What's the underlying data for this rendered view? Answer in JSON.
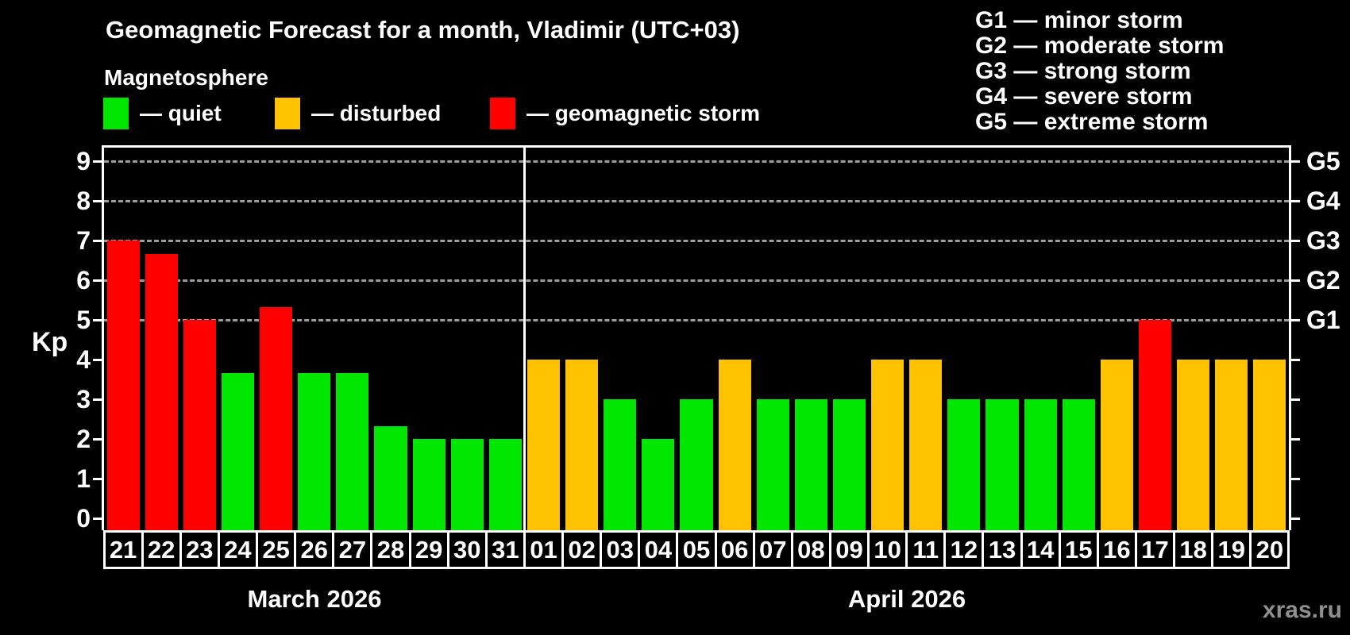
{
  "header": {
    "title": "Geomagnetic Forecast for a month, Vladimir (UTC+03)",
    "subtitle": "Magnetosphere"
  },
  "legend": {
    "items": [
      {
        "key": "quiet",
        "label": "— quiet",
        "color": "#00e600"
      },
      {
        "key": "disturbed",
        "label": "— disturbed",
        "color": "#ffc200"
      },
      {
        "key": "storm",
        "label": "— geomagnetic storm",
        "color": "#ff0000"
      }
    ]
  },
  "g_legend": {
    "lines": [
      "G1 — minor storm",
      "G2 — moderate storm",
      "G3 — strong storm",
      "G4 — severe storm",
      "G5 — extreme storm"
    ]
  },
  "watermark": "xras.ru",
  "chart_data": {
    "type": "bar",
    "title": "Geomagnetic Forecast for a month, Vladimir (UTC+03)",
    "ylabel": "Kp",
    "ylim": [
      0,
      9.4
    ],
    "grid": "horizontal dashed lines at Kp 5-9 (G1-G5 storm levels)",
    "legend_position": "top",
    "left_ticks": [
      0,
      1,
      2,
      3,
      4,
      5,
      6,
      7,
      8,
      9
    ],
    "g_levels": [
      {
        "kp": 5,
        "label": "G1"
      },
      {
        "kp": 6,
        "label": "G2"
      },
      {
        "kp": 7,
        "label": "G3"
      },
      {
        "kp": 8,
        "label": "G4"
      },
      {
        "kp": 9,
        "label": "G5"
      }
    ],
    "status_colors": {
      "quiet": "#00e600",
      "disturbed": "#ffc200",
      "storm": "#ff0000"
    },
    "months": [
      {
        "label": "March 2026",
        "days": 11
      },
      {
        "label": "April 2026",
        "days": 20
      }
    ],
    "days": [
      {
        "date": "21",
        "kp": 7.0,
        "status": "storm"
      },
      {
        "date": "22",
        "kp": 6.67,
        "status": "storm"
      },
      {
        "date": "23",
        "kp": 5.0,
        "status": "storm"
      },
      {
        "date": "24",
        "kp": 3.67,
        "status": "quiet"
      },
      {
        "date": "25",
        "kp": 5.33,
        "status": "storm"
      },
      {
        "date": "26",
        "kp": 3.67,
        "status": "quiet"
      },
      {
        "date": "27",
        "kp": 3.67,
        "status": "quiet"
      },
      {
        "date": "28",
        "kp": 2.33,
        "status": "quiet"
      },
      {
        "date": "29",
        "kp": 2.0,
        "status": "quiet"
      },
      {
        "date": "30",
        "kp": 2.0,
        "status": "quiet"
      },
      {
        "date": "31",
        "kp": 2.0,
        "status": "quiet"
      },
      {
        "date": "01",
        "kp": 4.0,
        "status": "disturbed"
      },
      {
        "date": "02",
        "kp": 4.0,
        "status": "disturbed"
      },
      {
        "date": "03",
        "kp": 3.0,
        "status": "quiet"
      },
      {
        "date": "04",
        "kp": 2.0,
        "status": "quiet"
      },
      {
        "date": "05",
        "kp": 3.0,
        "status": "quiet"
      },
      {
        "date": "06",
        "kp": 4.0,
        "status": "disturbed"
      },
      {
        "date": "07",
        "kp": 3.0,
        "status": "quiet"
      },
      {
        "date": "08",
        "kp": 3.0,
        "status": "quiet"
      },
      {
        "date": "09",
        "kp": 3.0,
        "status": "quiet"
      },
      {
        "date": "10",
        "kp": 4.0,
        "status": "disturbed"
      },
      {
        "date": "11",
        "kp": 4.0,
        "status": "disturbed"
      },
      {
        "date": "12",
        "kp": 3.0,
        "status": "quiet"
      },
      {
        "date": "13",
        "kp": 3.0,
        "status": "quiet"
      },
      {
        "date": "14",
        "kp": 3.0,
        "status": "quiet"
      },
      {
        "date": "15",
        "kp": 3.0,
        "status": "quiet"
      },
      {
        "date": "16",
        "kp": 4.0,
        "status": "disturbed"
      },
      {
        "date": "17",
        "kp": 5.0,
        "status": "storm"
      },
      {
        "date": "18",
        "kp": 4.0,
        "status": "disturbed"
      },
      {
        "date": "19",
        "kp": 4.0,
        "status": "disturbed"
      },
      {
        "date": "20",
        "kp": 4.0,
        "status": "disturbed"
      }
    ]
  }
}
